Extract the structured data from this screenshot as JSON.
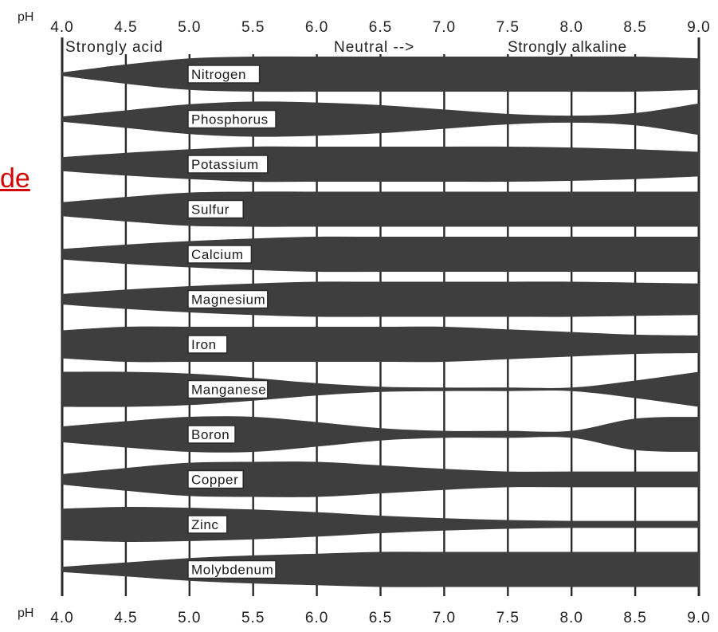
{
  "side_link_fragment": "de",
  "chart_data": {
    "type": "area",
    "axis_label": "pH",
    "x_ticks": [
      "4.0",
      "4.5",
      "5.0",
      "5.5",
      "6.0",
      "6.5",
      "7.0",
      "7.5",
      "8.0",
      "8.5",
      "9.0"
    ],
    "xlim": [
      4.0,
      9.0
    ],
    "range_labels": [
      "Strongly acid",
      "Neutral -->",
      "Strongly alkaline"
    ],
    "band_color": "#3e3e3e",
    "line_color": "#2a2a2a",
    "y_quantity": "relative availability (band width)",
    "ph_points": [
      4.0,
      4.5,
      5.0,
      5.5,
      6.0,
      6.5,
      7.0,
      7.5,
      8.0,
      8.5,
      9.0
    ],
    "series": [
      {
        "name": "Nitrogen",
        "values": [
          0.1,
          0.55,
          0.9,
          1.0,
          1.0,
          1.0,
          1.0,
          1.0,
          1.0,
          1.0,
          0.9
        ]
      },
      {
        "name": "Phosphorus",
        "values": [
          0.15,
          0.5,
          0.85,
          1.0,
          0.95,
          0.8,
          0.55,
          0.3,
          0.2,
          0.35,
          0.9
        ]
      },
      {
        "name": "Potassium",
        "values": [
          0.4,
          0.65,
          0.85,
          1.0,
          1.0,
          1.0,
          1.0,
          1.0,
          0.95,
          0.85,
          0.7
        ]
      },
      {
        "name": "Sulfur",
        "values": [
          0.4,
          0.7,
          0.95,
          1.0,
          1.0,
          1.0,
          1.0,
          1.0,
          1.0,
          1.0,
          1.0
        ]
      },
      {
        "name": "Calcium",
        "values": [
          0.3,
          0.55,
          0.75,
          0.9,
          1.0,
          1.0,
          1.0,
          1.0,
          1.0,
          1.0,
          1.0
        ]
      },
      {
        "name": "Magnesium",
        "values": [
          0.3,
          0.55,
          0.75,
          0.9,
          1.0,
          1.0,
          1.0,
          1.0,
          1.0,
          0.95,
          0.9
        ]
      },
      {
        "name": "Iron",
        "values": [
          0.8,
          1.0,
          1.0,
          1.0,
          1.0,
          1.0,
          1.0,
          0.85,
          0.7,
          0.55,
          0.5
        ]
      },
      {
        "name": "Manganese",
        "values": [
          1.0,
          1.0,
          0.9,
          0.65,
          0.35,
          0.15,
          0.1,
          0.1,
          0.1,
          0.5,
          1.0
        ]
      },
      {
        "name": "Boron",
        "values": [
          0.45,
          0.75,
          1.0,
          1.0,
          0.7,
          0.35,
          0.2,
          0.2,
          0.2,
          0.9,
          1.0
        ]
      },
      {
        "name": "Copper",
        "values": [
          0.3,
          0.65,
          0.95,
          1.0,
          1.0,
          0.8,
          0.6,
          0.45,
          0.45,
          0.45,
          0.45
        ]
      },
      {
        "name": "Zinc",
        "values": [
          0.9,
          1.0,
          0.95,
          0.85,
          0.7,
          0.5,
          0.35,
          0.25,
          0.2,
          0.2,
          0.2
        ]
      },
      {
        "name": "Molybdenum",
        "values": [
          0.15,
          0.4,
          0.65,
          0.8,
          0.9,
          1.0,
          1.0,
          1.0,
          1.0,
          1.0,
          1.0
        ]
      }
    ]
  }
}
